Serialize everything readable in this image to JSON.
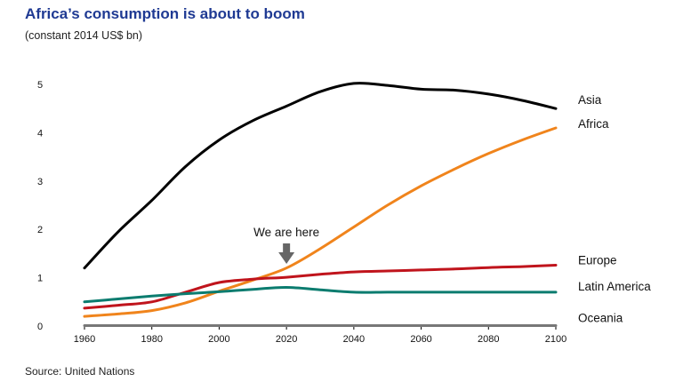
{
  "title": "Africa’s consumption is about to boom",
  "subtitle": "(constant 2014 US$ bn)",
  "source": "Source: United Nations",
  "chart_data": {
    "type": "line",
    "title": "Africa’s consumption is about to boom",
    "subtitle": "(constant 2014 US$ bn)",
    "xlabel": "",
    "ylabel": "",
    "xlim": [
      1960,
      2100
    ],
    "ylim": [
      0,
      5
    ],
    "x_ticks": [
      1960,
      1980,
      2000,
      2020,
      2040,
      2060,
      2080,
      2100
    ],
    "y_ticks": [
      0,
      1,
      2,
      3,
      4,
      5
    ],
    "grid": false,
    "legend": "direct labels at right end of lines",
    "x": [
      1960,
      1970,
      1980,
      1990,
      2000,
      2010,
      2020,
      2030,
      2040,
      2050,
      2060,
      2070,
      2080,
      2090,
      2100
    ],
    "series": [
      {
        "name": "Asia",
        "color": "#000000",
        "values": [
          1.2,
          1.95,
          2.6,
          3.3,
          3.85,
          4.25,
          4.55,
          4.85,
          5.02,
          4.98,
          4.9,
          4.88,
          4.8,
          4.67,
          4.5
        ]
      },
      {
        "name": "Africa",
        "color": "#f0841c",
        "values": [
          0.2,
          0.25,
          0.32,
          0.48,
          0.72,
          0.95,
          1.2,
          1.6,
          2.05,
          2.5,
          2.9,
          3.25,
          3.57,
          3.85,
          4.1
        ]
      },
      {
        "name": "Europe",
        "color": "#c0141c",
        "values": [
          0.37,
          0.43,
          0.5,
          0.7,
          0.9,
          0.97,
          1.01,
          1.07,
          1.12,
          1.14,
          1.16,
          1.18,
          1.21,
          1.23,
          1.26
        ]
      },
      {
        "name": "Latin America",
        "color": "#0b7c6f",
        "values": [
          0.5,
          0.56,
          0.62,
          0.67,
          0.71,
          0.76,
          0.8,
          0.75,
          0.7,
          0.7,
          0.7,
          0.7,
          0.7,
          0.7,
          0.7
        ]
      },
      {
        "name": "Oceania",
        "color": "#777777",
        "values": [
          0.01,
          0.01,
          0.01,
          0.01,
          0.01,
          0.01,
          0.01,
          0.01,
          0.01,
          0.01,
          0.01,
          0.01,
          0.01,
          0.01,
          0.01
        ]
      }
    ],
    "annotation": {
      "text": "We are here",
      "x": 2020,
      "y": 1.65
    }
  }
}
